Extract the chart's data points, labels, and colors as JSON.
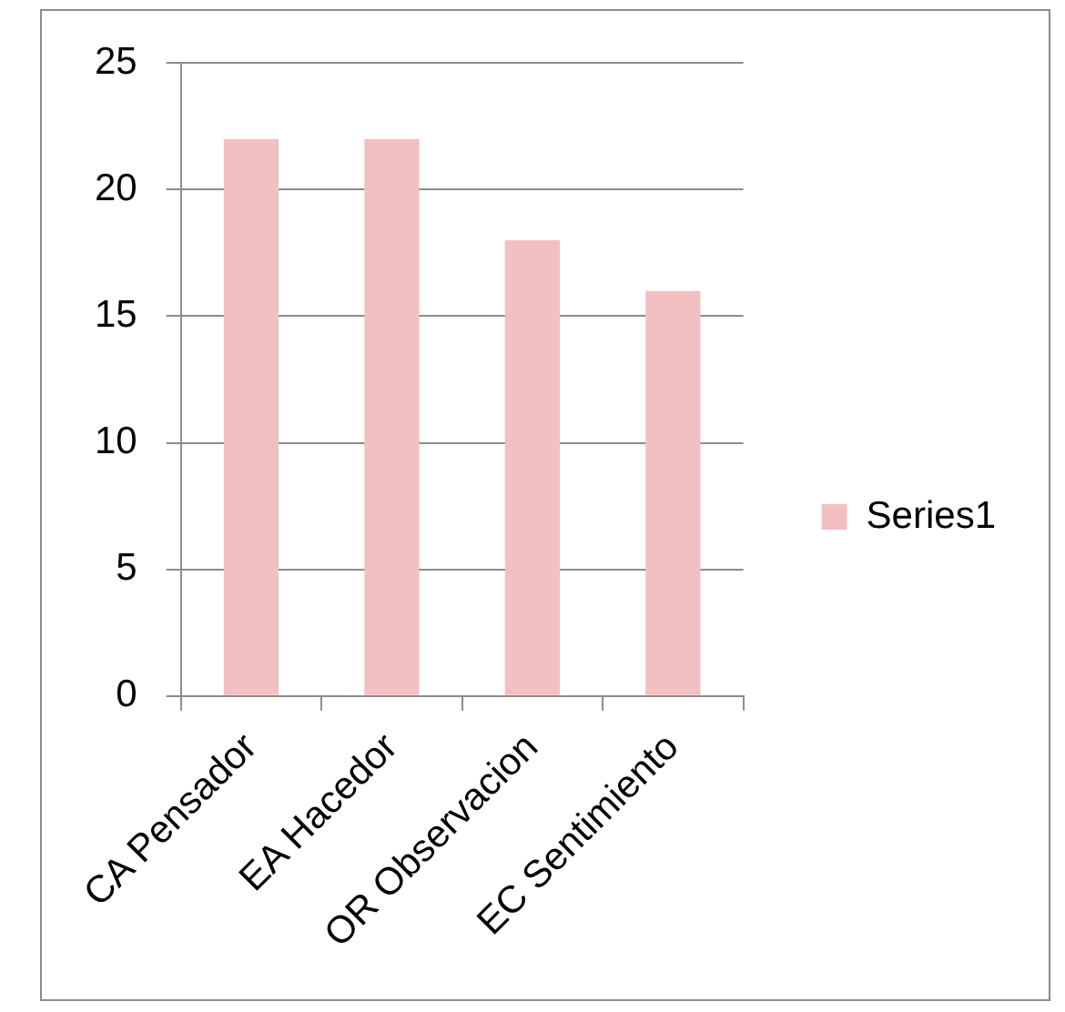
{
  "chart_data": {
    "type": "bar",
    "categories": [
      "CA Pensador",
      "EA Hacedor",
      "OR Observacion",
      "EC Sentimiento"
    ],
    "series": [
      {
        "name": "Series1",
        "color": "#f2c0c0",
        "values": [
          22,
          22,
          18,
          16
        ]
      }
    ],
    "ylim": [
      0,
      25
    ],
    "yticks": [
      0,
      5,
      10,
      15,
      20,
      25
    ],
    "grid": "y",
    "legend": "right"
  }
}
